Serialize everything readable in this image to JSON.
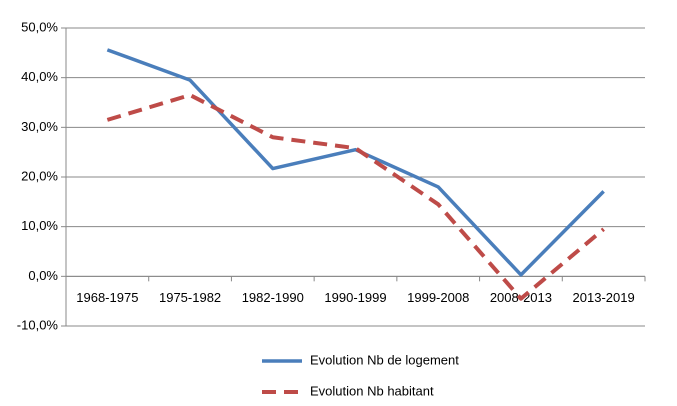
{
  "chart_data": {
    "type": "line",
    "categories": [
      "1968-1975",
      "1975-1982",
      "1982-1990",
      "1990-1999",
      "1999-2008",
      "2008-2013",
      "2013-2019"
    ],
    "series": [
      {
        "name": "Evolution Nb de logement",
        "color": "#4a7ebb",
        "style": "solid",
        "values": [
          45.6,
          39.5,
          21.7,
          25.5,
          18.0,
          0.3,
          17.1
        ]
      },
      {
        "name": "Evolution Nb habitant",
        "color": "#be4b48",
        "style": "dashed",
        "values": [
          31.5,
          36.5,
          28.0,
          25.8,
          14.5,
          -4.5,
          9.5
        ]
      }
    ],
    "ylim": [
      -10,
      50
    ],
    "yticks": [
      {
        "value": -10,
        "label": "-10,0%"
      },
      {
        "value": 0,
        "label": "0,0%"
      },
      {
        "value": 10,
        "label": "10,0%"
      },
      {
        "value": 20,
        "label": "20,0%"
      },
      {
        "value": 30,
        "label": "30,0%"
      },
      {
        "value": 40,
        "label": "40,0%"
      },
      {
        "value": 50,
        "label": "50,0%"
      }
    ],
    "grid": true,
    "legend": "bottom"
  }
}
